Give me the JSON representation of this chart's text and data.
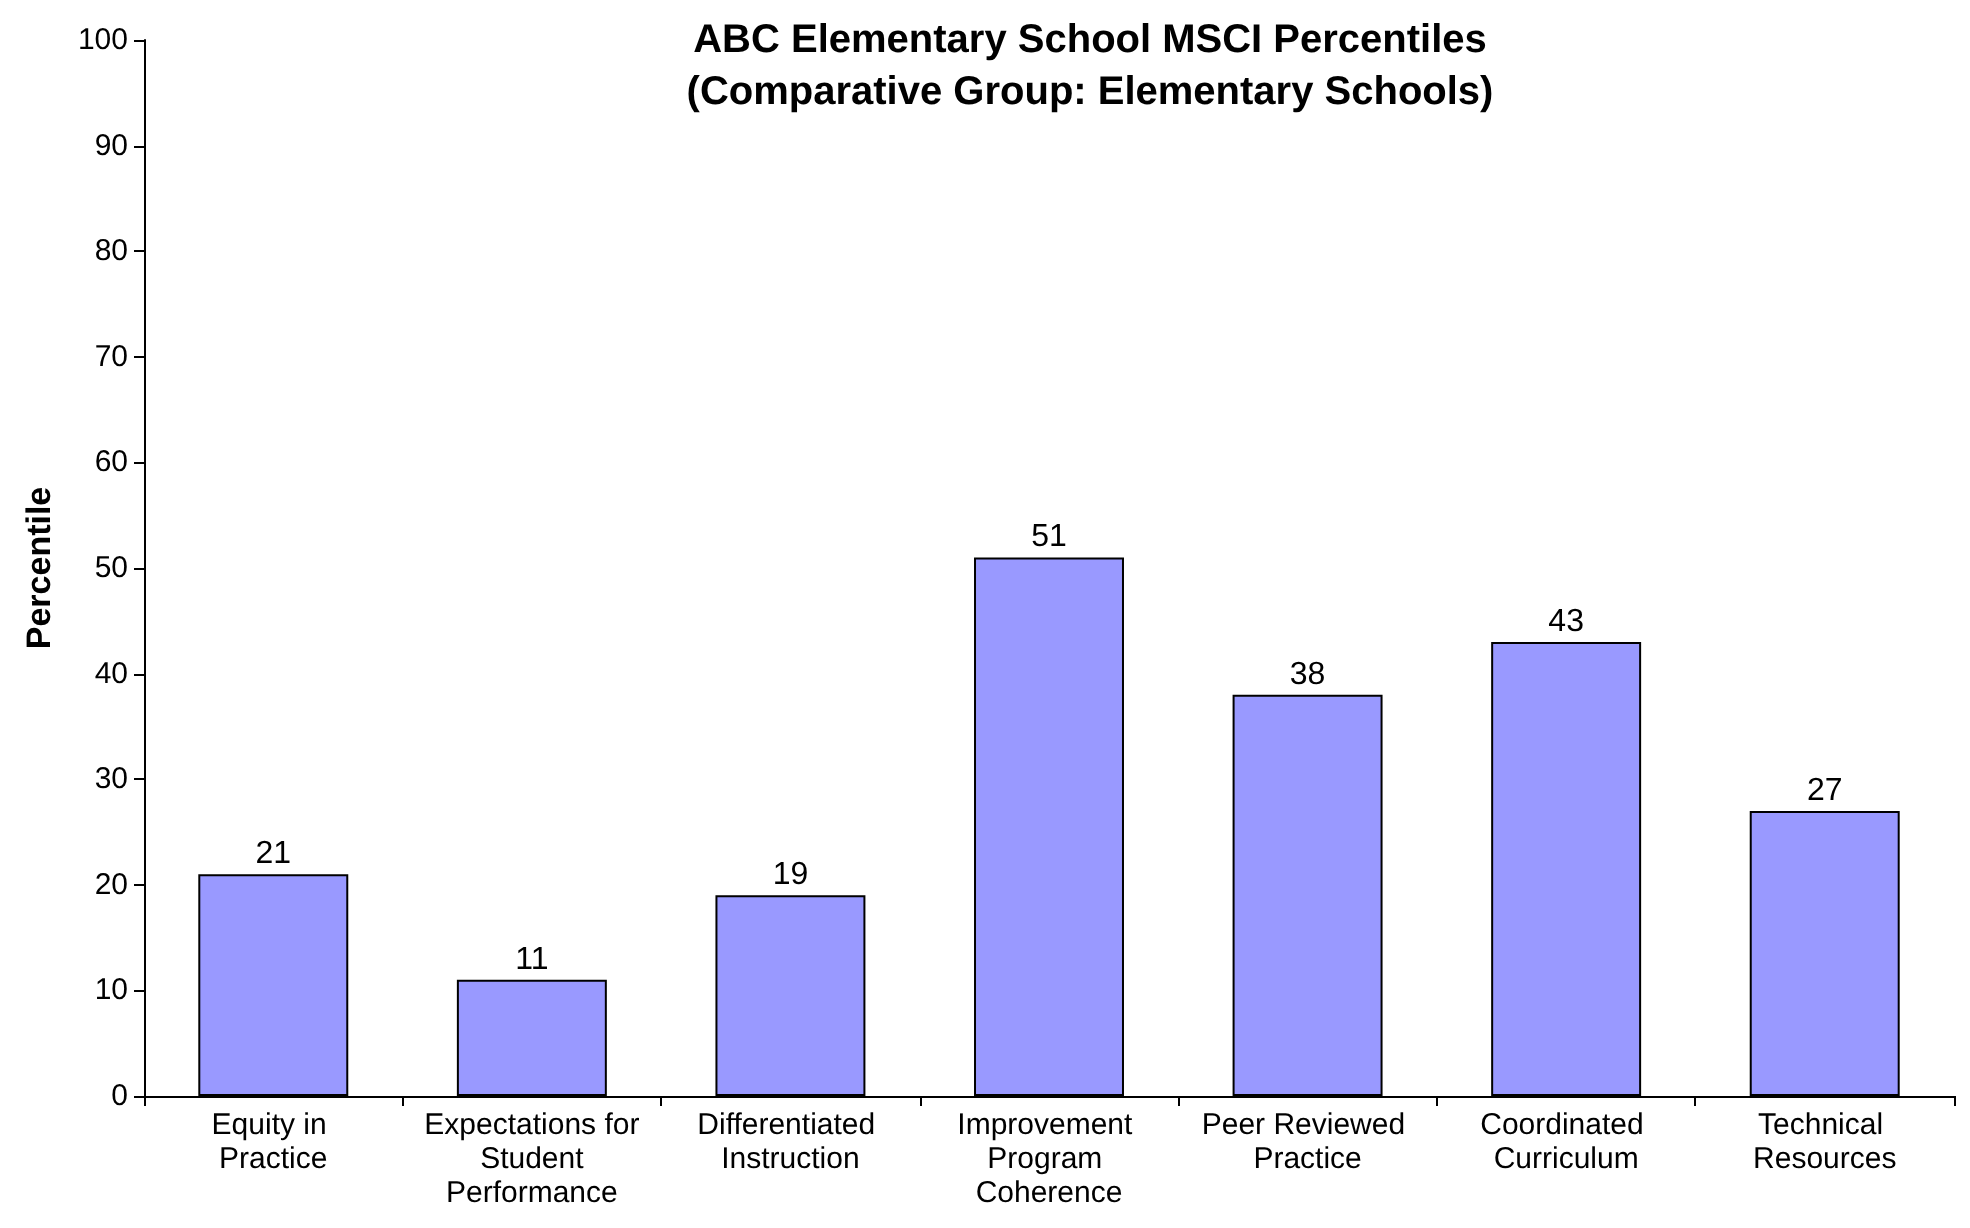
{
  "chart_data": {
    "type": "bar",
    "title": "ABC Elementary School MSCI Percentiles\n(Comparative Group: Elementary Schools)",
    "ylabel": "Percentile",
    "categories": [
      "Equity in Practice",
      "Expectations for Student Performance",
      "Differentiated Instruction",
      "Improvement Program Coherence",
      "Peer Reviewed Practice",
      "Coordinated Curriculum",
      "Technical Resources"
    ],
    "values": [
      21,
      11,
      19,
      51,
      38,
      43,
      27
    ],
    "color": "#9999ff",
    "ylim": [
      0,
      100
    ],
    "yticks": [
      0,
      10,
      20,
      30,
      40,
      50,
      60,
      70,
      80,
      90,
      100
    ],
    "grid": false,
    "data_labels": true
  }
}
